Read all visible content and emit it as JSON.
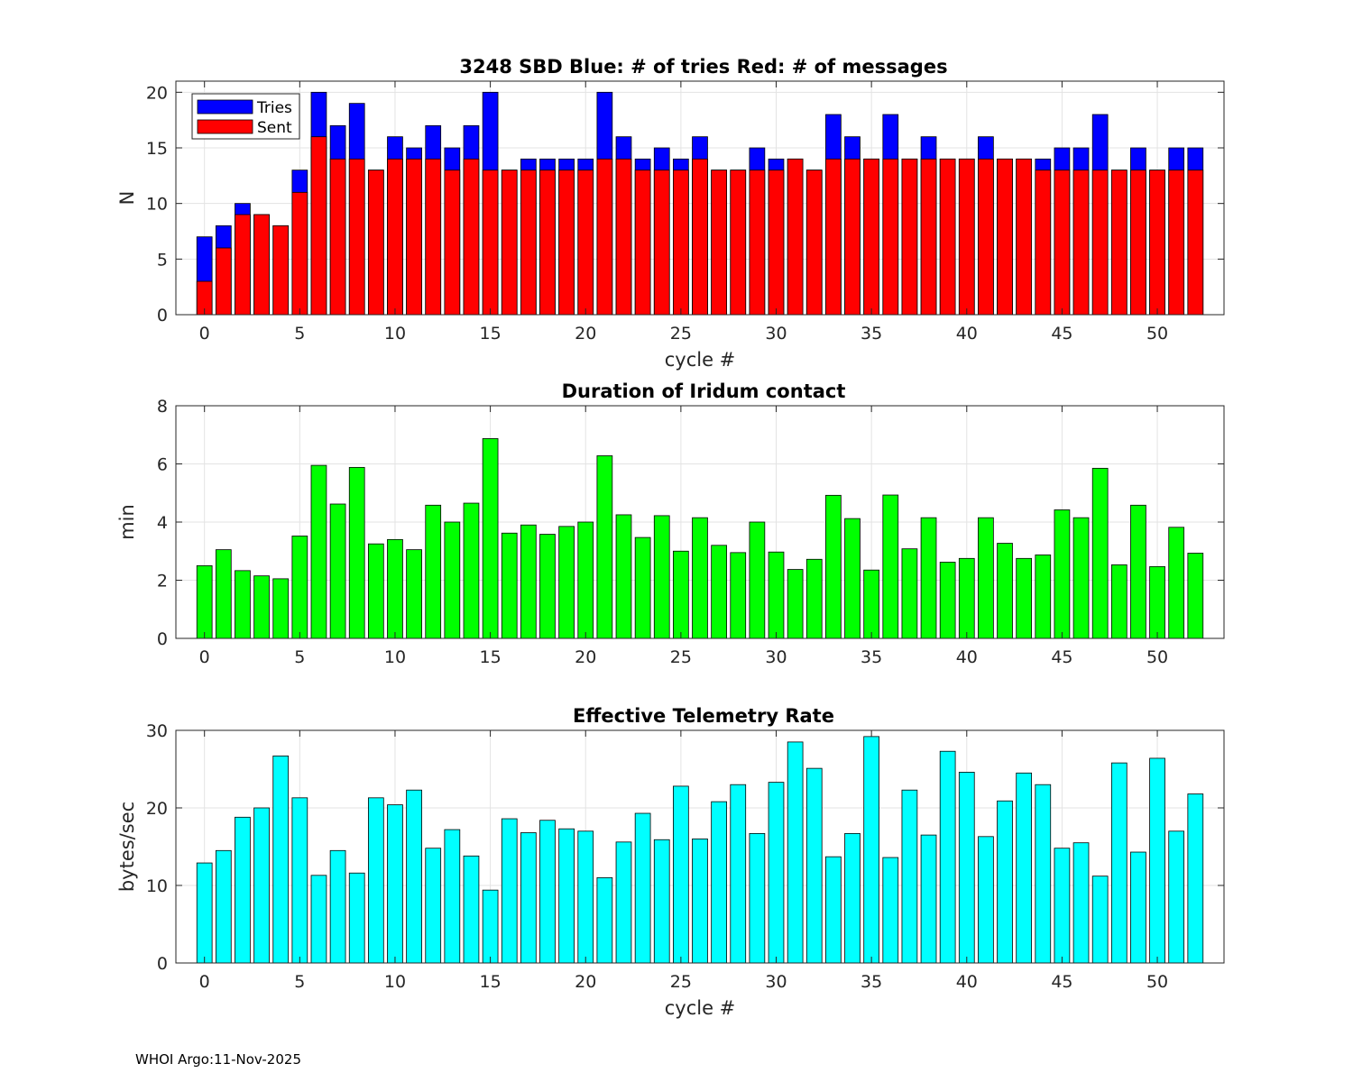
{
  "chart_data": [
    {
      "type": "bar",
      "title": "3248 SBD  Blue: # of tries   Red: # of messages",
      "xlabel": "cycle #",
      "ylabel": "N",
      "xlim": [
        -1.5,
        53.5
      ],
      "ylim": [
        0,
        21
      ],
      "xticks": [
        0,
        5,
        10,
        15,
        20,
        25,
        30,
        35,
        40,
        45,
        50
      ],
      "yticks": [
        0,
        5,
        10,
        15,
        20
      ],
      "grid": true,
      "legend_position": "top-left",
      "x": [
        0,
        1,
        2,
        3,
        4,
        5,
        6,
        7,
        8,
        9,
        10,
        11,
        12,
        13,
        14,
        15,
        16,
        17,
        18,
        19,
        20,
        21,
        22,
        23,
        24,
        25,
        26,
        27,
        28,
        29,
        30,
        31,
        32,
        33,
        34,
        35,
        36,
        37,
        38,
        39,
        40,
        41,
        42,
        43,
        44,
        45,
        46,
        47,
        48,
        49,
        50,
        51,
        52
      ],
      "series": [
        {
          "name": "Tries",
          "color": "#0000ff",
          "values": [
            7,
            8,
            10,
            9,
            8,
            13,
            20,
            17,
            19,
            13,
            16,
            15,
            17,
            15,
            17,
            20,
            13,
            14,
            14,
            14,
            14,
            20,
            16,
            14,
            15,
            14,
            16,
            13,
            13,
            15,
            14,
            14,
            13,
            18,
            16,
            14,
            18,
            14,
            16,
            14,
            14,
            16,
            14,
            14,
            14,
            15,
            15,
            18,
            13,
            15,
            13,
            15,
            15
          ]
        },
        {
          "name": "Sent",
          "color": "#ff0000",
          "values": [
            3,
            6,
            9,
            9,
            8,
            11,
            16,
            14,
            14,
            13,
            14,
            14,
            14,
            13,
            14,
            13,
            13,
            13,
            13,
            13,
            13,
            14,
            14,
            13,
            13,
            13,
            14,
            13,
            13,
            13,
            13,
            14,
            13,
            14,
            14,
            14,
            14,
            14,
            14,
            14,
            14,
            14,
            14,
            14,
            13,
            13,
            13,
            13,
            13,
            13,
            13,
            13,
            13
          ]
        }
      ]
    },
    {
      "type": "bar",
      "title": "Duration of Iridum contact",
      "xlabel": "",
      "ylabel": "min",
      "xlim": [
        -1.5,
        53.5
      ],
      "ylim": [
        0,
        8
      ],
      "xticks": [
        0,
        5,
        10,
        15,
        20,
        25,
        30,
        35,
        40,
        45,
        50
      ],
      "yticks": [
        0,
        2,
        4,
        6,
        8
      ],
      "grid": true,
      "x": [
        0,
        1,
        2,
        3,
        4,
        5,
        6,
        7,
        8,
        9,
        10,
        11,
        12,
        13,
        14,
        15,
        16,
        17,
        18,
        19,
        20,
        21,
        22,
        23,
        24,
        25,
        26,
        27,
        28,
        29,
        30,
        31,
        32,
        33,
        34,
        35,
        36,
        37,
        38,
        39,
        40,
        41,
        42,
        43,
        44,
        45,
        46,
        47,
        48,
        49,
        50,
        51,
        52
      ],
      "series": [
        {
          "name": "Duration",
          "color": "#00ff00",
          "values": [
            2.5,
            3.05,
            2.33,
            2.15,
            2.05,
            3.52,
            5.95,
            4.62,
            5.88,
            3.25,
            3.4,
            3.05,
            4.58,
            4.0,
            4.65,
            6.87,
            3.62,
            3.9,
            3.58,
            3.85,
            4.0,
            6.28,
            4.25,
            3.47,
            4.22,
            3.0,
            4.15,
            3.2,
            2.95,
            4.0,
            2.97,
            2.37,
            2.72,
            4.92,
            4.12,
            2.35,
            4.93,
            3.08,
            4.15,
            2.62,
            2.75,
            4.15,
            3.27,
            2.75,
            2.87,
            4.42,
            4.15,
            5.85,
            2.53,
            4.58,
            2.47,
            3.82,
            2.93
          ]
        }
      ]
    },
    {
      "type": "bar",
      "title": "Effective Telemetry Rate",
      "xlabel": "cycle #",
      "ylabel": "bytes/sec",
      "xlim": [
        -1.5,
        53.5
      ],
      "ylim": [
        0,
        30
      ],
      "xticks": [
        0,
        5,
        10,
        15,
        20,
        25,
        30,
        35,
        40,
        45,
        50
      ],
      "yticks": [
        0,
        10,
        20,
        30
      ],
      "grid": true,
      "x": [
        0,
        1,
        2,
        3,
        4,
        5,
        6,
        7,
        8,
        9,
        10,
        11,
        12,
        13,
        14,
        15,
        16,
        17,
        18,
        19,
        20,
        21,
        22,
        23,
        24,
        25,
        26,
        27,
        28,
        29,
        30,
        31,
        32,
        33,
        34,
        35,
        36,
        37,
        38,
        39,
        40,
        41,
        42,
        43,
        44,
        45,
        46,
        47,
        48,
        49,
        50,
        51,
        52
      ],
      "series": [
        {
          "name": "Rate",
          "color": "#00ffff",
          "values": [
            12.9,
            14.5,
            18.8,
            20.0,
            26.7,
            21.3,
            11.3,
            14.5,
            11.6,
            21.3,
            20.4,
            22.3,
            14.8,
            17.2,
            13.8,
            9.4,
            18.6,
            16.8,
            18.4,
            17.3,
            17.0,
            11.0,
            15.6,
            19.3,
            15.9,
            22.8,
            16.0,
            20.8,
            23.0,
            16.7,
            23.3,
            28.5,
            25.1,
            13.7,
            16.7,
            29.2,
            13.6,
            22.3,
            16.5,
            27.3,
            24.6,
            16.3,
            20.9,
            24.5,
            23.0,
            14.8,
            15.5,
            11.2,
            25.8,
            14.3,
            26.4,
            17.0,
            21.8
          ]
        }
      ]
    }
  ],
  "footer": "WHOI Argo:11-Nov-2025"
}
